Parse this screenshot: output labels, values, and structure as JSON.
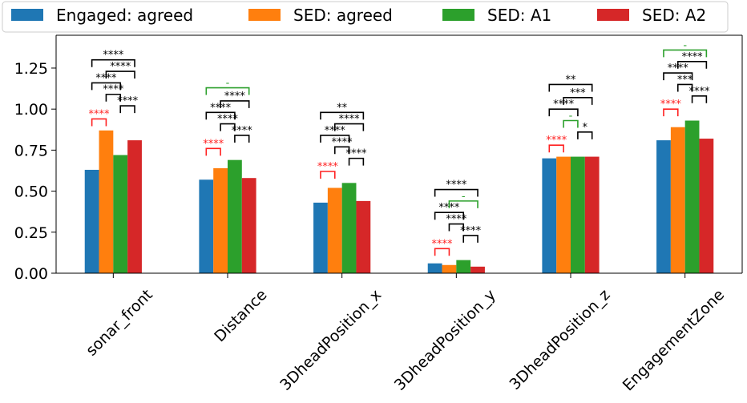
{
  "chart_data": {
    "type": "bar",
    "categories": [
      "sonar_front",
      "Distance",
      "3DheadPosition_x",
      "3DheadPosition_y",
      "3DheadPosition_z",
      "EngagementZone"
    ],
    "series": [
      {
        "name": "Engaged: agreed",
        "color": "#1f77b4",
        "values": [
          0.63,
          0.57,
          0.43,
          0.06,
          0.7,
          0.81
        ]
      },
      {
        "name": "SED: agreed",
        "color": "#ff7f0e",
        "values": [
          0.87,
          0.64,
          0.52,
          0.05,
          0.71,
          0.89
        ]
      },
      {
        "name": "SED: A1",
        "color": "#2ca02c",
        "values": [
          0.72,
          0.69,
          0.55,
          0.08,
          0.71,
          0.93
        ]
      },
      {
        "name": "SED: A2",
        "color": "#d62728",
        "values": [
          0.81,
          0.58,
          0.44,
          0.04,
          0.71,
          0.82
        ]
      }
    ],
    "ylim": [
      0,
      1.45
    ],
    "yticks": [
      "0.00",
      "0.25",
      "0.50",
      "0.75",
      "1.00",
      "1.25"
    ],
    "ytick_values": [
      0,
      0.25,
      0.5,
      0.75,
      1.0,
      1.25
    ],
    "legend_position": "top",
    "significance": [
      {
        "category": "sonar_front",
        "comparisons": [
          {
            "a": 0,
            "b": 1,
            "y": 0.94,
            "label": "****",
            "color": "#ff2020"
          },
          {
            "a": 2,
            "b": 3,
            "y": 1.02,
            "label": "****",
            "color": "#000000"
          },
          {
            "a": 1,
            "b": 2,
            "y": 1.09,
            "label": "****",
            "color": "#000000"
          },
          {
            "a": 0,
            "b": 2,
            "y": 1.16,
            "label": "****",
            "color": "#000000"
          },
          {
            "a": 1,
            "b": 3,
            "y": 1.23,
            "label": "****",
            "color": "#000000"
          },
          {
            "a": 0,
            "b": 3,
            "y": 1.3,
            "label": "****",
            "color": "#000000"
          }
        ]
      },
      {
        "category": "Distance",
        "comparisons": [
          {
            "a": 0,
            "b": 1,
            "y": 0.76,
            "label": "****",
            "color": "#ff2020"
          },
          {
            "a": 2,
            "b": 3,
            "y": 0.84,
            "label": "****",
            "color": "#000000"
          },
          {
            "a": 1,
            "b": 2,
            "y": 0.91,
            "label": "****",
            "color": "#000000"
          },
          {
            "a": 0,
            "b": 2,
            "y": 0.98,
            "label": "****",
            "color": "#000000"
          },
          {
            "a": 1,
            "b": 3,
            "y": 1.05,
            "label": "****",
            "color": "#000000"
          },
          {
            "a": 0,
            "b": 3,
            "y": 1.13,
            "label": "-",
            "color": "#2ca02c"
          }
        ]
      },
      {
        "category": "3DheadPosition_x",
        "comparisons": [
          {
            "a": 0,
            "b": 1,
            "y": 0.62,
            "label": "****",
            "color": "#ff2020"
          },
          {
            "a": 2,
            "b": 3,
            "y": 0.7,
            "label": "****",
            "color": "#000000"
          },
          {
            "a": 1,
            "b": 2,
            "y": 0.77,
            "label": "****",
            "color": "#000000"
          },
          {
            "a": 0,
            "b": 2,
            "y": 0.84,
            "label": "****",
            "color": "#000000"
          },
          {
            "a": 1,
            "b": 3,
            "y": 0.91,
            "label": "****",
            "color": "#000000"
          },
          {
            "a": 0,
            "b": 3,
            "y": 0.98,
            "label": "**",
            "color": "#000000"
          }
        ]
      },
      {
        "category": "3DheadPosition_y",
        "comparisons": [
          {
            "a": 0,
            "b": 1,
            "y": 0.15,
            "label": "****",
            "color": "#ff2020"
          },
          {
            "a": 2,
            "b": 3,
            "y": 0.23,
            "label": "****",
            "color": "#000000"
          },
          {
            "a": 1,
            "b": 2,
            "y": 0.3,
            "label": "****",
            "color": "#000000"
          },
          {
            "a": 0,
            "b": 2,
            "y": 0.37,
            "label": "****",
            "color": "#000000"
          },
          {
            "a": 1,
            "b": 3,
            "y": 0.44,
            "label": "-",
            "color": "#2ca02c"
          },
          {
            "a": 0,
            "b": 3,
            "y": 0.51,
            "label": "****",
            "color": "#000000"
          }
        ]
      },
      {
        "category": "3DheadPosition_z",
        "comparisons": [
          {
            "a": 0,
            "b": 1,
            "y": 0.78,
            "label": "****",
            "color": "#ff2020"
          },
          {
            "a": 2,
            "b": 3,
            "y": 0.86,
            "label": "*",
            "color": "#000000"
          },
          {
            "a": 1,
            "b": 2,
            "y": 0.93,
            "label": "-",
            "color": "#2ca02c"
          },
          {
            "a": 0,
            "b": 2,
            "y": 1.0,
            "label": "****",
            "color": "#000000"
          },
          {
            "a": 1,
            "b": 3,
            "y": 1.07,
            "label": "***",
            "color": "#000000"
          },
          {
            "a": 0,
            "b": 3,
            "y": 1.15,
            "label": "**",
            "color": "#000000"
          }
        ]
      },
      {
        "category": "EngagementZone",
        "comparisons": [
          {
            "a": 0,
            "b": 1,
            "y": 1.0,
            "label": "****",
            "color": "#ff2020"
          },
          {
            "a": 2,
            "b": 3,
            "y": 1.08,
            "label": "****",
            "color": "#000000"
          },
          {
            "a": 1,
            "b": 2,
            "y": 1.15,
            "label": "***",
            "color": "#000000"
          },
          {
            "a": 0,
            "b": 2,
            "y": 1.22,
            "label": "****",
            "color": "#000000"
          },
          {
            "a": 1,
            "b": 3,
            "y": 1.29,
            "label": "****",
            "color": "#000000"
          },
          {
            "a": 0,
            "b": 3,
            "y": 1.36,
            "label": "-",
            "color": "#2ca02c"
          }
        ]
      }
    ]
  }
}
